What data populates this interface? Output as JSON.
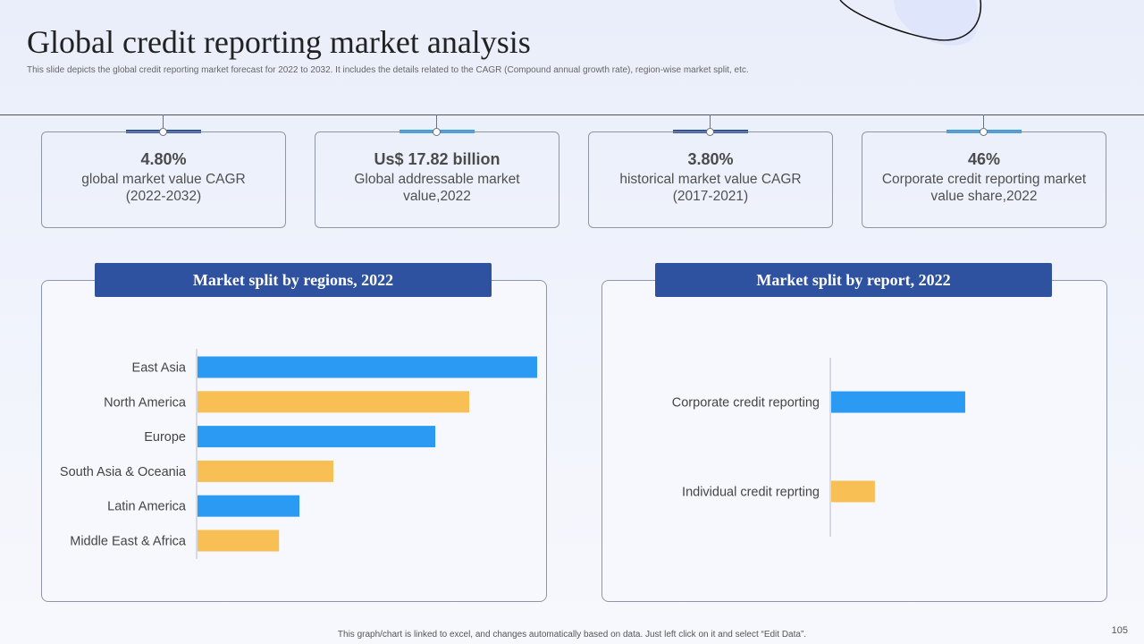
{
  "header": {
    "title": "Global credit reporting market analysis",
    "subtitle": "This slide depicts the global credit reporting market forecast for 2022 to 2032. It includes the details related to the CAGR (Compound annual growth rate), region-wise market split, etc."
  },
  "stats": [
    {
      "value": "4.80%",
      "description": "global market value CAGR (2022-2032)",
      "accent": "#2f52a0"
    },
    {
      "value": "Us$ 17.82 billion",
      "description": "Global addressable market value,2022",
      "accent": "#3aa0ea"
    },
    {
      "value": "3.80%",
      "description": "historical market value CAGR (2017-2021)",
      "accent": "#2f52a0"
    },
    {
      "value": "46%",
      "description": "Corporate credit reporting market value share,2022",
      "accent": "#3aa0ea"
    }
  ],
  "colors": {
    "blue": "#2b9af3",
    "yellow": "#f8bf54",
    "header": "#2f52a0"
  },
  "chart_data": [
    {
      "type": "bar",
      "orientation": "horizontal",
      "title": "Market split by regions, 2022",
      "categories": [
        "East Asia",
        "North America",
        "Europe",
        "South Asia & Oceania",
        "Latin America",
        "Middle East & Africa"
      ],
      "values": [
        100,
        80,
        70,
        40,
        30,
        24
      ],
      "bar_colors": [
        "#2b9af3",
        "#f8bf54",
        "#2b9af3",
        "#f8bf54",
        "#2b9af3",
        "#f8bf54"
      ],
      "xlim": [
        0,
        100
      ]
    },
    {
      "type": "bar",
      "orientation": "horizontal",
      "title": "Market split by report, 2022",
      "categories": [
        "Corporate credit reporting",
        "Individual credit reprting"
      ],
      "values": [
        46,
        15
      ],
      "bar_colors": [
        "#2b9af3",
        "#f8bf54"
      ],
      "xlim": [
        0,
        100
      ]
    }
  ],
  "footer": {
    "note": "This graph/chart is linked to excel, and changes automatically based on data. Just left click on it and select “Edit Data”.",
    "page_number": "105"
  }
}
